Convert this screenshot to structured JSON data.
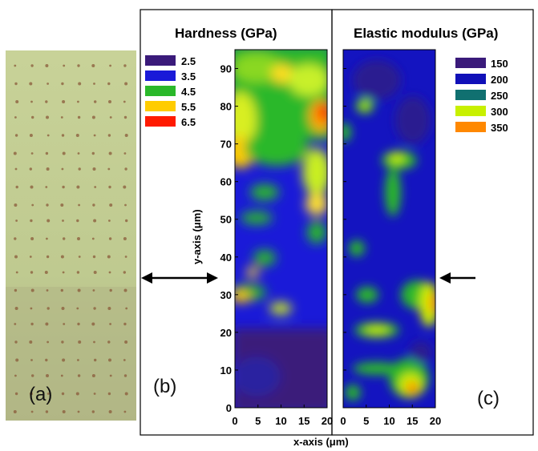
{
  "panel_a": {
    "label": "(a)",
    "dot_grid": {
      "columns": 8,
      "rows": 21
    }
  },
  "panel_b": {
    "label": "(b)",
    "title": "Hardness (GPa)",
    "legend": [
      {
        "label": "2.5",
        "color": "#3a1a7a"
      },
      {
        "label": "3.5",
        "color": "#1a1ad8"
      },
      {
        "label": "4.5",
        "color": "#2ab82a"
      },
      {
        "label": "5.5",
        "color": "#ffcc00"
      },
      {
        "label": "6.5",
        "color": "#ff1a00"
      }
    ]
  },
  "panel_c": {
    "label": "(c)",
    "title": "Elastic modulus (GPa)",
    "legend": [
      {
        "label": "150",
        "color": "#3a1a7a"
      },
      {
        "label": "200",
        "color": "#1010b8"
      },
      {
        "label": "250",
        "color": "#107070"
      },
      {
        "label": "300",
        "color": "#c8f000"
      },
      {
        "label": "350",
        "color": "#ff8800"
      }
    ]
  },
  "axes": {
    "ylabel": "y-axis (μm)",
    "xlabel": "x-axis (μm)",
    "y_ticks": [
      "0",
      "10",
      "20",
      "30",
      "40",
      "50",
      "60",
      "70",
      "80",
      "90"
    ],
    "x_ticks": [
      "0",
      "5",
      "10",
      "15",
      "20"
    ]
  },
  "colors": {
    "photo_top": "#c2cc92",
    "photo_bottom": "#b4ba86",
    "dot": "#8a5a3a"
  }
}
